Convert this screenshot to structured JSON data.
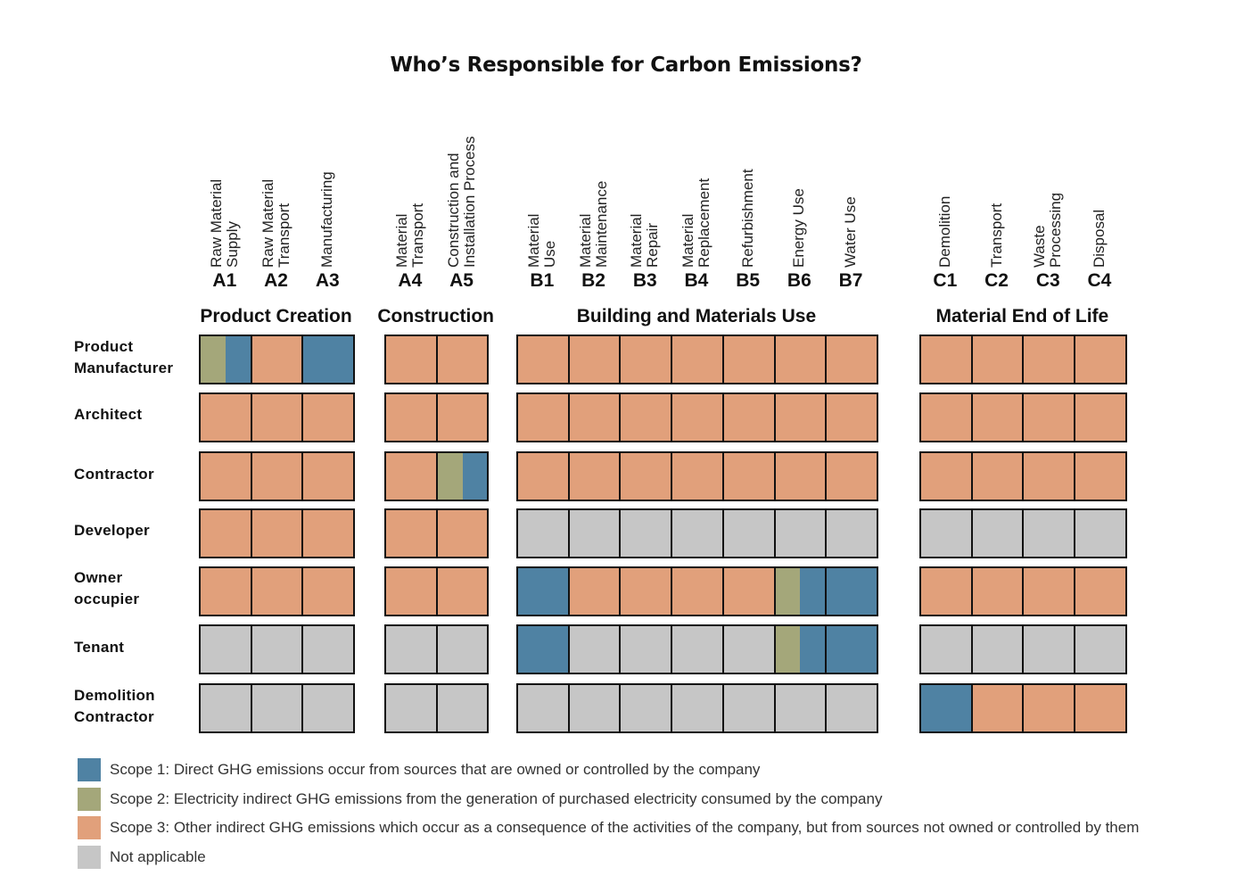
{
  "title": "Who’s Responsible for Carbon Emissions?",
  "colors": {
    "s1": "#4f82a3",
    "s2": "#a4a77a",
    "s3": "#e1a07b",
    "na": "#c6c6c6"
  },
  "groups": [
    {
      "title": "Product Creation",
      "stages": [
        {
          "code": "A1",
          "name": "Raw Material\nSupply"
        },
        {
          "code": "A2",
          "name": "Raw Material\nTransport"
        },
        {
          "code": "A3",
          "name": "Manufacturing"
        }
      ]
    },
    {
      "title": "Construction",
      "stages": [
        {
          "code": "A4",
          "name": "Material\nTransport"
        },
        {
          "code": "A5",
          "name": "Construction and\nInstallation Process"
        }
      ]
    },
    {
      "title": "Building and Materials Use",
      "stages": [
        {
          "code": "B1",
          "name": "Material\nUse"
        },
        {
          "code": "B2",
          "name": "Material\nMaintenance"
        },
        {
          "code": "B3",
          "name": "Material\nRepair"
        },
        {
          "code": "B4",
          "name": "Material\nReplacement"
        },
        {
          "code": "B5",
          "name": "Refurbishment"
        },
        {
          "code": "B6",
          "name": "Energy Use"
        },
        {
          "code": "B7",
          "name": "Water Use"
        }
      ]
    },
    {
      "title": "Material End of Life",
      "stages": [
        {
          "code": "C1",
          "name": "Demolition"
        },
        {
          "code": "C2",
          "name": "Transport"
        },
        {
          "code": "C3",
          "name": "Waste\nProcessing"
        },
        {
          "code": "C4",
          "name": "Disposal"
        }
      ]
    }
  ],
  "rows": [
    {
      "label": "Product\nManufacturer",
      "cells": [
        "s2+s1",
        "s3",
        "s1",
        "s3",
        "s3",
        "s3",
        "s3",
        "s3",
        "s3",
        "s3",
        "s3",
        "s3",
        "s3",
        "s3",
        "s3",
        "s3"
      ]
    },
    {
      "label": "Architect",
      "cells": [
        "s3",
        "s3",
        "s3",
        "s3",
        "s3",
        "s3",
        "s3",
        "s3",
        "s3",
        "s3",
        "s3",
        "s3",
        "s3",
        "s3",
        "s3",
        "s3"
      ]
    },
    {
      "label": "Contractor",
      "cells": [
        "s3",
        "s3",
        "s3",
        "s3",
        "s2+s1",
        "s3",
        "s3",
        "s3",
        "s3",
        "s3",
        "s3",
        "s3",
        "s3",
        "s3",
        "s3",
        "s3"
      ]
    },
    {
      "label": "Developer",
      "cells": [
        "s3",
        "s3",
        "s3",
        "s3",
        "s3",
        "na",
        "na",
        "na",
        "na",
        "na",
        "na",
        "na",
        "na",
        "na",
        "na",
        "na"
      ]
    },
    {
      "label": "Owner\noccupier",
      "cells": [
        "s3",
        "s3",
        "s3",
        "s3",
        "s3",
        "s1",
        "s3",
        "s3",
        "s3",
        "s3",
        "s2+s1",
        "s1",
        "s3",
        "s3",
        "s3",
        "s3"
      ]
    },
    {
      "label": "Tenant",
      "cells": [
        "na",
        "na",
        "na",
        "na",
        "na",
        "s1",
        "na",
        "na",
        "na",
        "na",
        "s2+s1",
        "s1",
        "na",
        "na",
        "na",
        "na"
      ]
    },
    {
      "label": "Demolition\nContractor",
      "cells": [
        "na",
        "na",
        "na",
        "na",
        "na",
        "na",
        "na",
        "na",
        "na",
        "na",
        "na",
        "na",
        "s1",
        "s3",
        "s3",
        "s3"
      ]
    }
  ],
  "legend": [
    {
      "key": "s1",
      "text": "Scope 1: Direct GHG emissions occur from sources that are owned or controlled by the company"
    },
    {
      "key": "s2",
      "text": "Scope 2: Electricity indirect GHG emissions from the generation of purchased electricity consumed by the company"
    },
    {
      "key": "s3",
      "text": "Scope 3: Other indirect GHG emissions which occur as a consequence of the activities of the company, but from sources not owned or controlled by them"
    },
    {
      "key": "na",
      "text": "Not applicable"
    }
  ]
}
